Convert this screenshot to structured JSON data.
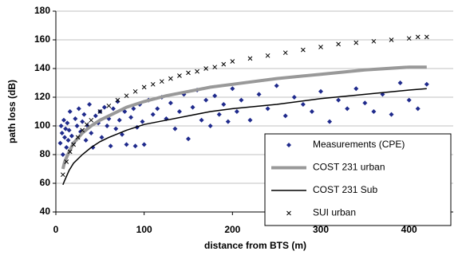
{
  "chart_data": {
    "type": "scatter",
    "xlabel": "distance from BTS (m)",
    "ylabel": "path loss (dB)",
    "xlim": [
      0,
      450
    ],
    "xticks": [
      0,
      100,
      200,
      300,
      400
    ],
    "ylim": [
      40,
      180
    ],
    "yticks": [
      40,
      60,
      80,
      100,
      120,
      140,
      160,
      180
    ],
    "grid": true,
    "legend": "lower right",
    "series": [
      {
        "name": "Measurements (CPE)",
        "color": "#1f2a8c",
        "mode": "markers",
        "marker": "diamond",
        "x": [
          5,
          6,
          7,
          8,
          9,
          10,
          11,
          12,
          13,
          14,
          15,
          16,
          18,
          20,
          22,
          24,
          26,
          28,
          30,
          32,
          34,
          36,
          38,
          40,
          42,
          45,
          48,
          50,
          52,
          55,
          58,
          60,
          62,
          65,
          68,
          70,
          72,
          75,
          78,
          80,
          85,
          88,
          90,
          92,
          95,
          98,
          100,
          105,
          110,
          115,
          120,
          125,
          130,
          135,
          140,
          145,
          150,
          155,
          160,
          165,
          170,
          175,
          180,
          185,
          190,
          195,
          200,
          205,
          210,
          220,
          230,
          240,
          250,
          260,
          270,
          280,
          290,
          300,
          310,
          320,
          330,
          340,
          350,
          360,
          370,
          380,
          390,
          400,
          410,
          420
        ],
        "values": [
          88,
          100,
          95,
          80,
          104,
          92,
          98,
          85,
          102,
          90,
          97,
          110,
          93,
          88,
          105,
          100,
          112,
          96,
          103,
          108,
          90,
          100,
          115,
          95,
          85,
          107,
          102,
          110,
          92,
          113,
          100,
          105,
          86,
          112,
          98,
          117,
          104,
          94,
          110,
          87,
          106,
          112,
          86,
          99,
          115,
          103,
          87,
          118,
          108,
          112,
          120,
          105,
          116,
          98,
          110,
          122,
          91,
          113,
          125,
          104,
          118,
          100,
          121,
          108,
          115,
          103,
          126,
          110,
          118,
          104,
          122,
          112,
          128,
          107,
          120,
          115,
          110,
          124,
          103,
          118,
          112,
          126,
          116,
          110,
          122,
          108,
          130,
          118,
          112,
          129
        ]
      },
      {
        "name": "COST 231 urban",
        "color": "#999999",
        "mode": "line",
        "width": 4,
        "x": [
          8,
          10,
          15,
          20,
          30,
          40,
          50,
          60,
          80,
          100,
          125,
          150,
          175,
          200,
          250,
          300,
          350,
          400,
          420
        ],
        "values": [
          70,
          75,
          82,
          88,
          95,
          100,
          104,
          107,
          113,
          117,
          121,
          124,
          127,
          129,
          133,
          136,
          139,
          141,
          141
        ]
      },
      {
        "name": "COST 231 Sub",
        "color": "#000000",
        "mode": "line",
        "width": 1.5,
        "x": [
          8,
          10,
          15,
          20,
          30,
          40,
          50,
          60,
          80,
          100,
          125,
          150,
          175,
          200,
          250,
          300,
          350,
          400,
          420
        ],
        "values": [
          59,
          62,
          69,
          74,
          80,
          85,
          89,
          92,
          97,
          101,
          104,
          107,
          110,
          112,
          115,
          119,
          122,
          125,
          126
        ]
      },
      {
        "name": "SUI urban",
        "color": "#000000",
        "mode": "markers",
        "marker": "x",
        "x": [
          8,
          12,
          16,
          20,
          25,
          30,
          35,
          40,
          50,
          60,
          70,
          80,
          90,
          100,
          110,
          120,
          130,
          140,
          150,
          160,
          170,
          180,
          190,
          200,
          220,
          240,
          260,
          280,
          300,
          320,
          340,
          360,
          380,
          400,
          410,
          420
        ],
        "values": [
          66,
          75,
          82,
          87,
          92,
          97,
          101,
          104,
          110,
          114,
          118,
          121,
          124,
          127,
          129,
          131,
          133,
          135,
          137,
          138,
          140,
          141,
          143,
          145,
          147,
          149,
          151,
          153,
          155,
          157,
          158,
          159,
          160,
          161,
          162,
          162
        ]
      }
    ]
  }
}
